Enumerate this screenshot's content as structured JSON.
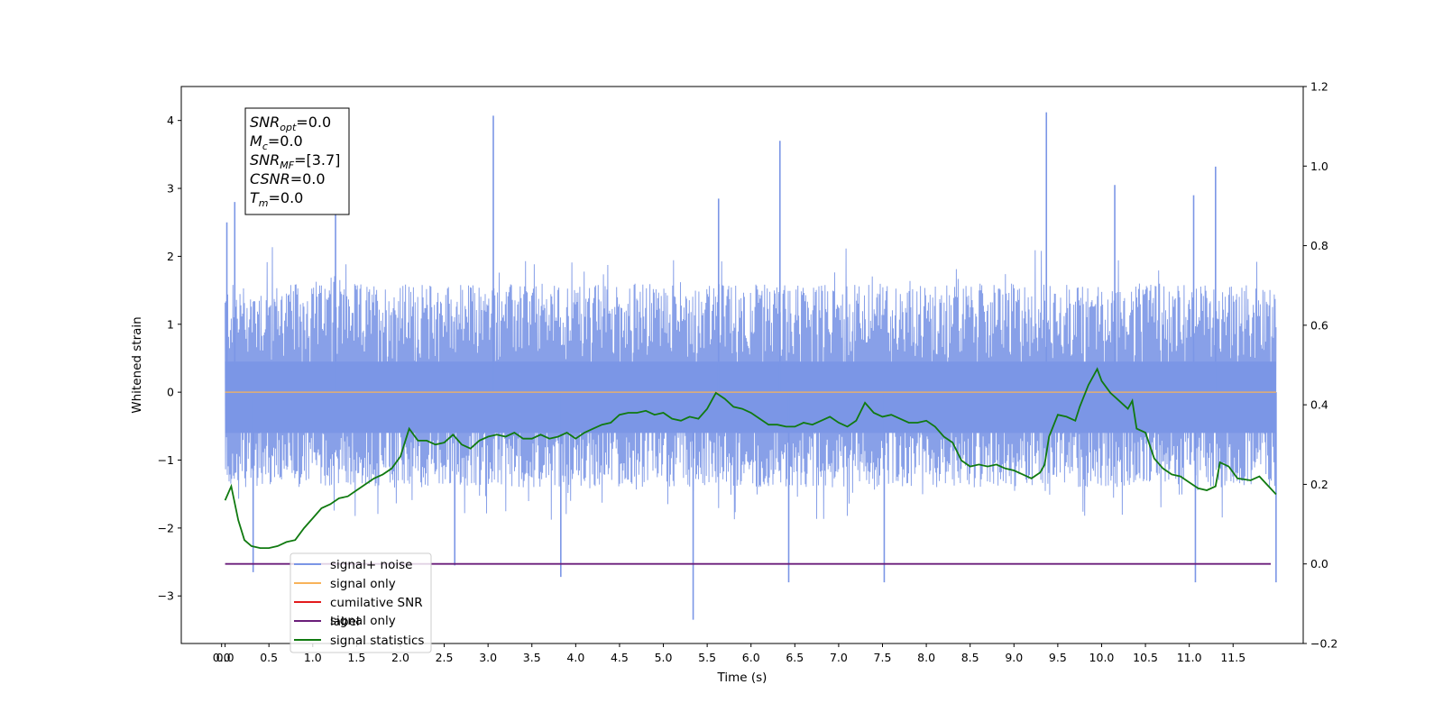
{
  "chart_data": {
    "type": "line",
    "title": "",
    "xlabel": "Time (s)",
    "ylabel": "Whitened strain",
    "y2label": "",
    "xlim": [
      -0.5,
      12.3
    ],
    "ylim": [
      -3.7,
      4.5
    ],
    "y2lim": [
      -0.2,
      1.2
    ],
    "grid": false,
    "legend_position": "lower-left",
    "x_ticks": [
      "0.0",
      "0.0",
      "0.5",
      "1.0",
      "1.5",
      "2.0",
      "2.5",
      "3.0",
      "3.5",
      "4.0",
      "4.5",
      "5.0",
      "5.5",
      "6.0",
      "6.5",
      "7.0",
      "7.5",
      "8.0",
      "8.5",
      "9.0",
      "9.5",
      "10.0",
      "10.5",
      "11.0",
      "11.5"
    ],
    "x_tick_values": [
      -0.04,
      0.0,
      0.5,
      1.0,
      1.5,
      2.0,
      2.5,
      3.0,
      3.5,
      4.0,
      4.5,
      5.0,
      5.5,
      6.0,
      6.5,
      7.0,
      7.5,
      8.0,
      8.5,
      9.0,
      9.5,
      10.0,
      10.5,
      11.0,
      11.5
    ],
    "y_ticks": [
      -3,
      -2,
      -1,
      0,
      1,
      2,
      3,
      4
    ],
    "y_tick_labels": [
      "−3",
      "−2",
      "−1",
      "0",
      "1",
      "2",
      "3",
      "4"
    ],
    "y2_ticks": [
      -0.2,
      0.0,
      0.2,
      0.4,
      0.6,
      0.8,
      1.0,
      1.2
    ],
    "y2_tick_labels": [
      "−0.2",
      "0.0",
      "0.2",
      "0.4",
      "0.6",
      "0.8",
      "1.0",
      "1.2"
    ],
    "series": [
      {
        "name": "signal+ noise",
        "color": "#7b96e6",
        "axis": "left",
        "x_range": [
          0.0,
          11.99
        ],
        "typical_range": [
          -1.4,
          1.6
        ],
        "spikes": [
          {
            "x": 0.02,
            "y": 2.5
          },
          {
            "x": 0.11,
            "y": 2.8
          },
          {
            "x": 0.32,
            "y": -2.65
          },
          {
            "x": 1.26,
            "y": 3.05
          },
          {
            "x": 3.06,
            "y": 4.07
          },
          {
            "x": 5.63,
            "y": 2.85
          },
          {
            "x": 5.34,
            "y": -3.35
          },
          {
            "x": 6.33,
            "y": 3.7
          },
          {
            "x": 6.43,
            "y": -2.8
          },
          {
            "x": 7.52,
            "y": -2.8
          },
          {
            "x": 9.37,
            "y": 4.12
          },
          {
            "x": 10.15,
            "y": 3.05
          },
          {
            "x": 11.05,
            "y": 2.9
          },
          {
            "x": 11.3,
            "y": 3.32
          },
          {
            "x": 11.07,
            "y": -2.8
          },
          {
            "x": 11.99,
            "y": -2.8
          },
          {
            "x": 3.83,
            "y": -2.72
          },
          {
            "x": 2.62,
            "y": -2.55
          }
        ]
      },
      {
        "name": "signal only",
        "color": "#f8b35a",
        "axis": "left",
        "x": [
          0.0,
          11.99
        ],
        "y": [
          0.0,
          0.0
        ]
      },
      {
        "name": "cumilative SNR",
        "color": "#e31a1c",
        "axis": "left",
        "x": [],
        "y": []
      },
      {
        "name": "label",
        "color": "#6a1e7a",
        "axis": "right",
        "x": [
          0.0,
          11.93
        ],
        "y": [
          0.0,
          0.0
        ]
      },
      {
        "name": "signal statistics",
        "color": "#107a10",
        "axis": "right",
        "x": [
          0.0,
          0.07,
          0.15,
          0.22,
          0.3,
          0.4,
          0.5,
          0.6,
          0.7,
          0.8,
          0.9,
          1.0,
          1.1,
          1.2,
          1.3,
          1.4,
          1.5,
          1.6,
          1.7,
          1.8,
          1.9,
          2.0,
          2.1,
          2.2,
          2.3,
          2.4,
          2.5,
          2.6,
          2.7,
          2.8,
          2.9,
          3.0,
          3.1,
          3.2,
          3.3,
          3.4,
          3.5,
          3.6,
          3.7,
          3.8,
          3.9,
          4.0,
          4.1,
          4.2,
          4.3,
          4.4,
          4.5,
          4.6,
          4.7,
          4.8,
          4.9,
          5.0,
          5.1,
          5.2,
          5.3,
          5.4,
          5.5,
          5.6,
          5.7,
          5.8,
          5.9,
          6.0,
          6.1,
          6.2,
          6.3,
          6.4,
          6.5,
          6.6,
          6.7,
          6.8,
          6.9,
          7.0,
          7.1,
          7.2,
          7.3,
          7.4,
          7.5,
          7.6,
          7.7,
          7.8,
          7.9,
          8.0,
          8.1,
          8.2,
          8.3,
          8.4,
          8.5,
          8.6,
          8.7,
          8.8,
          8.9,
          9.0,
          9.1,
          9.2,
          9.3,
          9.35,
          9.4,
          9.5,
          9.6,
          9.7,
          9.75,
          9.85,
          9.95,
          10.0,
          10.1,
          10.2,
          10.3,
          10.35,
          10.4,
          10.5,
          10.6,
          10.7,
          10.8,
          10.9,
          11.0,
          11.1,
          11.2,
          11.3,
          11.35,
          11.45,
          11.55,
          11.7,
          11.8,
          11.99
        ],
        "y": [
          0.16,
          0.195,
          0.11,
          0.06,
          0.045,
          0.04,
          0.04,
          0.045,
          0.055,
          0.06,
          0.09,
          0.115,
          0.14,
          0.15,
          0.165,
          0.17,
          0.185,
          0.2,
          0.215,
          0.225,
          0.24,
          0.27,
          0.34,
          0.31,
          0.31,
          0.3,
          0.305,
          0.325,
          0.3,
          0.29,
          0.31,
          0.32,
          0.325,
          0.32,
          0.33,
          0.315,
          0.315,
          0.325,
          0.315,
          0.32,
          0.33,
          0.315,
          0.33,
          0.34,
          0.35,
          0.355,
          0.375,
          0.38,
          0.38,
          0.385,
          0.375,
          0.38,
          0.365,
          0.36,
          0.37,
          0.365,
          0.39,
          0.43,
          0.415,
          0.395,
          0.39,
          0.38,
          0.365,
          0.35,
          0.35,
          0.345,
          0.345,
          0.355,
          0.35,
          0.36,
          0.37,
          0.355,
          0.345,
          0.36,
          0.405,
          0.38,
          0.37,
          0.375,
          0.365,
          0.355,
          0.355,
          0.36,
          0.345,
          0.32,
          0.305,
          0.26,
          0.245,
          0.25,
          0.245,
          0.25,
          0.24,
          0.235,
          0.225,
          0.215,
          0.23,
          0.25,
          0.32,
          0.375,
          0.37,
          0.36,
          0.395,
          0.45,
          0.49,
          0.46,
          0.43,
          0.41,
          0.39,
          0.41,
          0.34,
          0.33,
          0.265,
          0.24,
          0.225,
          0.22,
          0.205,
          0.19,
          0.185,
          0.195,
          0.255,
          0.245,
          0.215,
          0.21,
          0.22,
          0.175
        ]
      }
    ],
    "info_box": {
      "lines": [
        {
          "sym": "SNR",
          "sub": "opt",
          "val": "=0.0"
        },
        {
          "sym": "M",
          "sub": "c",
          "val": "=0.0"
        },
        {
          "sym": "SNR",
          "sub": "MF",
          "val": "=[3.7]"
        },
        {
          "sym": "CSNR",
          "sub": "",
          "val": "=0.0"
        },
        {
          "sym": "T",
          "sub": "m",
          "val": "=0.0"
        }
      ]
    },
    "legend_overlap_text": "signal only"
  }
}
